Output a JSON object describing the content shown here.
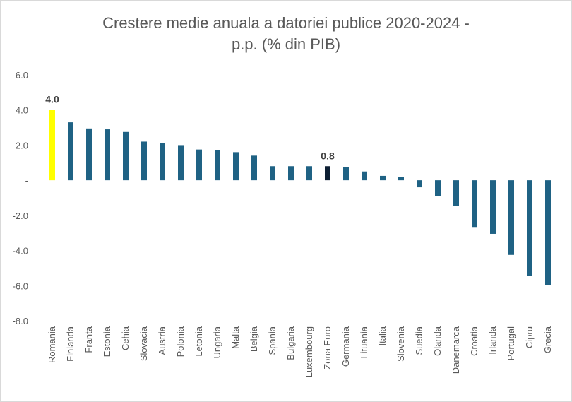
{
  "chart_data": {
    "type": "bar",
    "title_line1": "Crestere medie anuala a datoriei publice 2020-2024 -",
    "title_line2": "p.p. (% din PIB)",
    "xlabel": "",
    "ylabel": "",
    "ylim": [
      -8,
      6
    ],
    "yticks": [
      6,
      4,
      2,
      0,
      -2,
      -4,
      -6,
      -8
    ],
    "ytick_labels": [
      "6.0",
      "4.0",
      "2.0",
      "-",
      "-2.0",
      "-4.0",
      "-6.0",
      "-8.0"
    ],
    "categories": [
      "Romania",
      "Finlanda",
      "Franta",
      "Estonia",
      "Cehia",
      "Slovacia",
      "Austria",
      "Polonia",
      "Letonia",
      "Ungaria",
      "Malta",
      "Belgia",
      "Spania",
      "Bulgaria",
      "Luxembourg",
      "Zona Euro",
      "Germania",
      "Lituania",
      "Italia",
      "Slovenia",
      "Suedia",
      "Olanda",
      "Danemarca",
      "Croatia",
      "Irlanda",
      "Portugal",
      "Cipru",
      "Grecia"
    ],
    "values": [
      4.0,
      3.3,
      2.95,
      2.9,
      2.75,
      2.2,
      2.1,
      2.0,
      1.75,
      1.7,
      1.6,
      1.4,
      0.8,
      0.8,
      0.8,
      0.8,
      0.75,
      0.5,
      0.25,
      0.2,
      -0.4,
      -0.9,
      -1.45,
      -2.7,
      -3.05,
      -4.25,
      -5.45,
      -5.95
    ],
    "data_labels": [
      {
        "category": "Romania",
        "text": "4.0"
      },
      {
        "category": "Zona Euro",
        "text": "0.8"
      }
    ],
    "colors": {
      "default": "#1f6284",
      "Romania": "#ffff00",
      "Zona Euro": "#0d1f33"
    },
    "grid": false,
    "legend": "none"
  }
}
